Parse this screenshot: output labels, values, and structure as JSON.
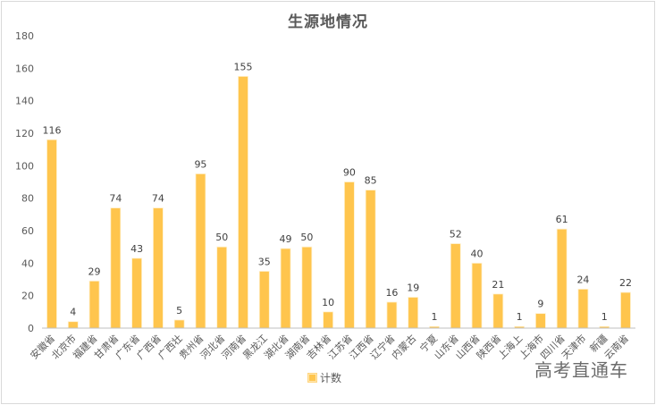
{
  "chart_data": {
    "type": "bar",
    "title": "生源地情况",
    "xlabel": "",
    "ylabel": "",
    "ylim": [
      0,
      180
    ],
    "yticks": [
      0,
      20,
      40,
      60,
      80,
      100,
      120,
      140,
      160,
      180
    ],
    "grid": false,
    "legend_position": "bottom",
    "categories": [
      "安徽省",
      "北京市",
      "福建省",
      "甘肃省",
      "广东省",
      "广西省",
      "广西壮",
      "贵州省",
      "河北省",
      "河南省",
      "黑龙江",
      "湖北省",
      "湖南省",
      "吉林省",
      "江苏省",
      "江西省",
      "辽宁省",
      "内蒙古",
      "宁夏",
      "山东省",
      "山西省",
      "陕西省",
      "上海上",
      "上海市",
      "四川省",
      "天津市",
      "新疆",
      "云南省"
    ],
    "series": [
      {
        "name": "计数",
        "color": "#ffc54d",
        "values": [
          116,
          4,
          29,
          74,
          43,
          74,
          5,
          95,
          50,
          155,
          35,
          49,
          50,
          10,
          90,
          85,
          16,
          19,
          1,
          52,
          40,
          21,
          1,
          9,
          61,
          24,
          1,
          22
        ]
      }
    ]
  },
  "legend": {
    "label": "计数"
  },
  "watermark": "高考直通车",
  "colors": {
    "bar": "#ffc54d",
    "bar_edge": "#fff1cf",
    "axis": "#bfbfbf",
    "text": "#595959"
  }
}
